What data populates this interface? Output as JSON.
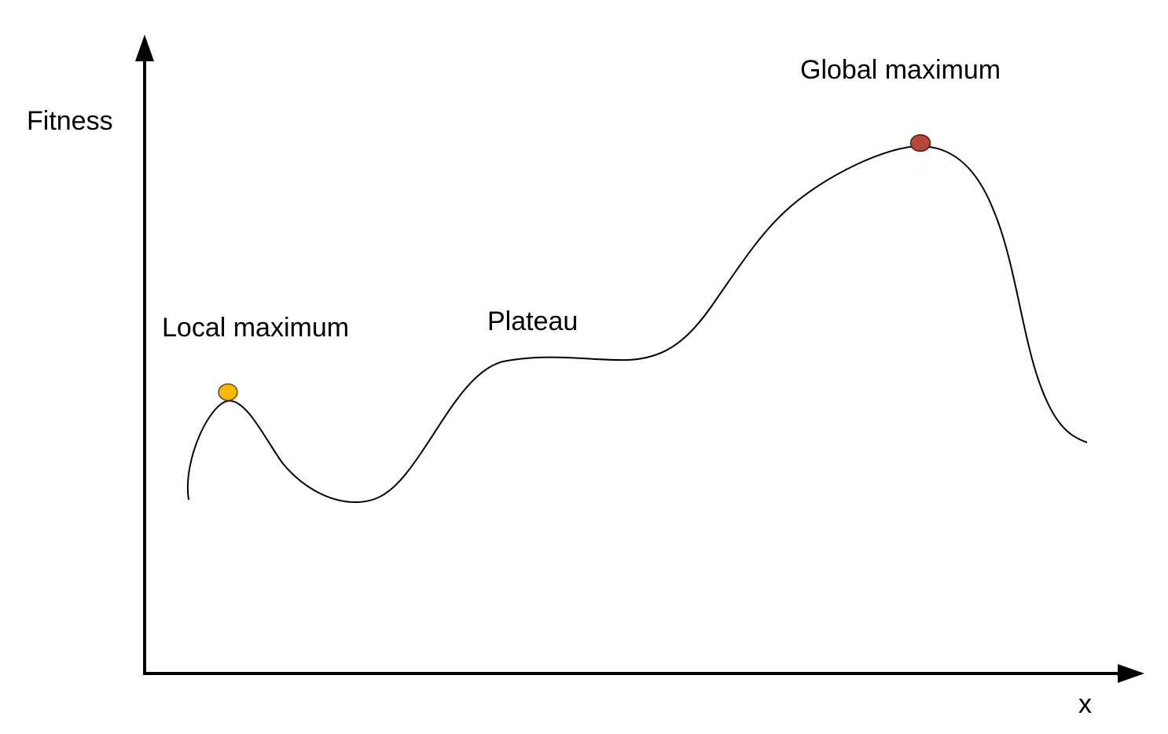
{
  "axes": {
    "y_label": "Fitness",
    "x_label": "x"
  },
  "annotations": {
    "local_maximum": "Local maximum",
    "plateau": "Plateau",
    "global_maximum": "Global maximum"
  },
  "markers": {
    "local_maximum_color": "#f5b800",
    "global_maximum_color": "#b5473a"
  },
  "colors": {
    "curve": "#000000",
    "axis": "#000000",
    "marker_outline": "#5a3a1a"
  }
}
